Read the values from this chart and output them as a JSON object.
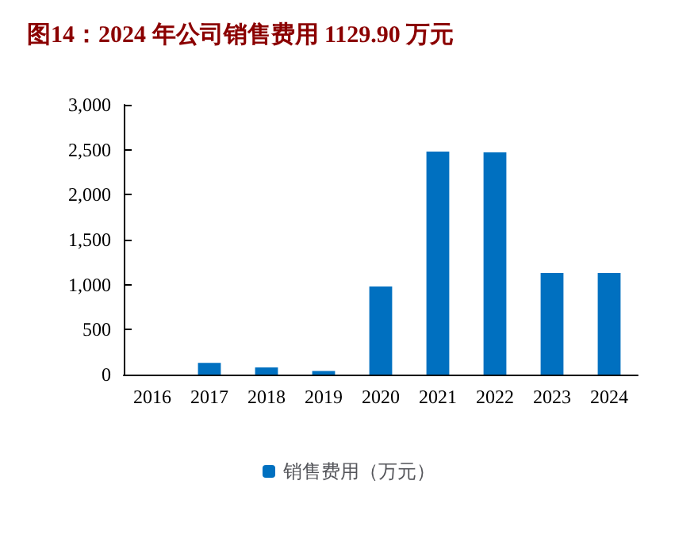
{
  "chart_data": {
    "type": "bar",
    "title": "图14：2024 年公司销售费用 1129.90 万元",
    "categories": [
      "2016",
      "2017",
      "2018",
      "2019",
      "2020",
      "2021",
      "2022",
      "2023",
      "2024"
    ],
    "series": [
      {
        "name": "销售费用（万元）",
        "color": "#0070c0",
        "values": [
          0,
          130,
          80,
          40,
          980,
          2480,
          2470,
          1130,
          1130
        ]
      }
    ],
    "ylim": [
      0,
      3000
    ],
    "yticks": [
      {
        "value": 0,
        "label": "0"
      },
      {
        "value": 500,
        "label": "500"
      },
      {
        "value": 1000,
        "label": "1,000"
      },
      {
        "value": 1500,
        "label": "1,500"
      },
      {
        "value": 2000,
        "label": "2,000"
      },
      {
        "value": 2500,
        "label": "2,500"
      },
      {
        "value": 3000,
        "label": "3,000"
      }
    ],
    "grid": false,
    "legend": "bottom"
  }
}
